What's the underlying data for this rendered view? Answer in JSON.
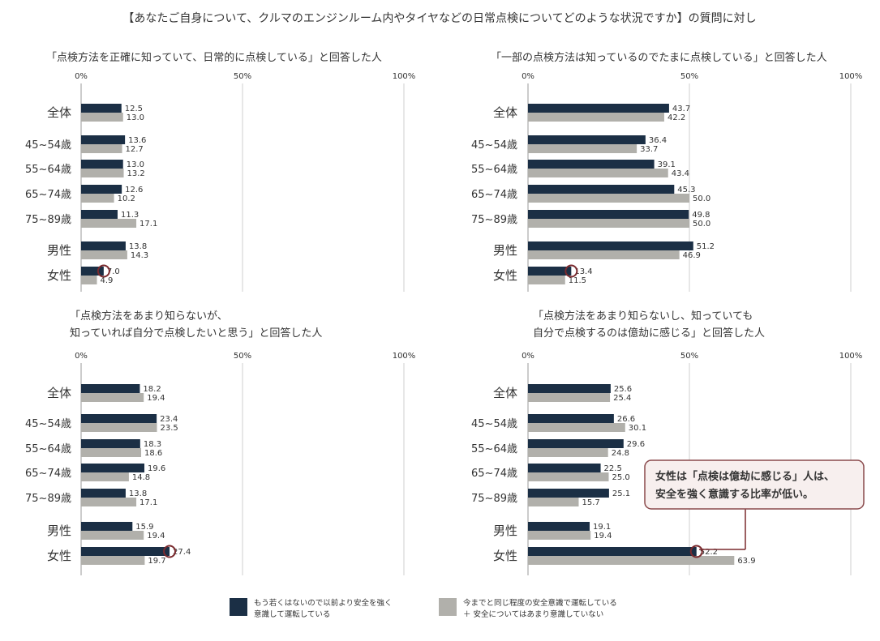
{
  "header": {
    "title": "【あなたご自身について、クルマのエンジンルーム内やタイヤなどの日常点検についてどのような状況ですか】の質問に対し"
  },
  "colors": {
    "series_strong": "#1b2f45",
    "series_same": "#b1b0ab",
    "axis": "#999999",
    "text": "#333333",
    "highlight": "#7a2a2e",
    "callout_bg": "#f7efee",
    "callout_border": "#8a4a4c"
  },
  "callout": {
    "line1": "女性は「点検は億劫に感じる」人は、",
    "line2": "安全を強く意識する比率が低い。"
  },
  "legend": {
    "items": [
      {
        "lines": [
          "もう若くはないので以前より安全を強く",
          "意識して運転している"
        ]
      },
      {
        "lines": [
          "今までと同じ程度の安全意識で運転している",
          "＋ 安全についてはあまり意識していない"
        ]
      }
    ]
  },
  "chart_data": [
    {
      "type": "bar",
      "orientation": "horizontal",
      "title": [
        "「点検方法を正確に知っていて、日常的に点検している」と回答した人"
      ],
      "xtick_labels": [
        "0%",
        "50%",
        "100%"
      ],
      "xlim": [
        0,
        100
      ],
      "categories": [
        "全体",
        "45~54歳",
        "55~64歳",
        "65~74歳",
        "75~89歳",
        "男性",
        "女性"
      ],
      "series": [
        {
          "values": [
            12.5,
            13.6,
            13.0,
            12.6,
            11.3,
            13.8,
            7.0
          ]
        },
        {
          "values": [
            13.0,
            12.7,
            13.2,
            10.2,
            17.1,
            14.3,
            4.9
          ]
        }
      ],
      "highlight_index": 6
    },
    {
      "type": "bar",
      "orientation": "horizontal",
      "title": [
        "「一部の点検方法は知っているのでたまに点検している」と回答した人"
      ],
      "xtick_labels": [
        "0%",
        "50%",
        "100%"
      ],
      "xlim": [
        0,
        100
      ],
      "categories": [
        "全体",
        "45~54歳",
        "55~64歳",
        "65~74歳",
        "75~89歳",
        "男性",
        "女性"
      ],
      "series": [
        {
          "values": [
            43.7,
            36.4,
            39.1,
            45.3,
            49.8,
            51.2,
            13.4
          ]
        },
        {
          "values": [
            42.2,
            33.7,
            43.4,
            50.0,
            50.0,
            46.9,
            11.5
          ]
        }
      ],
      "highlight_index": 6
    },
    {
      "type": "bar",
      "orientation": "horizontal",
      "title": [
        "「点検方法をあまり知らないが、",
        "知っていれば自分で点検したいと思う」と回答した人"
      ],
      "xtick_labels": [
        "0%",
        "50%",
        "100%"
      ],
      "xlim": [
        0,
        100
      ],
      "categories": [
        "全体",
        "45~54歳",
        "55~64歳",
        "65~74歳",
        "75~89歳",
        "男性",
        "女性"
      ],
      "series": [
        {
          "values": [
            18.2,
            23.4,
            18.3,
            19.6,
            13.8,
            15.9,
            27.4
          ]
        },
        {
          "values": [
            19.4,
            23.5,
            18.6,
            14.8,
            17.1,
            19.4,
            19.7
          ]
        }
      ],
      "highlight_index": 6
    },
    {
      "type": "bar",
      "orientation": "horizontal",
      "title": [
        "「点検方法をあまり知らないし、知っていても",
        "自分で点検するのは億劫に感じる」と回答した人"
      ],
      "xtick_labels": [
        "0%",
        "50%",
        "100%"
      ],
      "xlim": [
        0,
        100
      ],
      "categories": [
        "全体",
        "45~54歳",
        "55~64歳",
        "65~74歳",
        "75~89歳",
        "男性",
        "女性"
      ],
      "series": [
        {
          "values": [
            25.6,
            26.6,
            29.6,
            22.5,
            25.1,
            19.1,
            52.2
          ]
        },
        {
          "values": [
            25.4,
            30.1,
            24.8,
            25.0,
            15.7,
            19.4,
            63.9
          ]
        }
      ],
      "highlight_index": 6
    }
  ]
}
